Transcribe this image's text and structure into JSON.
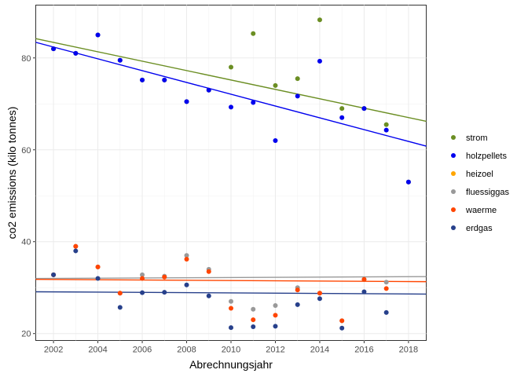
{
  "chart_data": {
    "type": "scatter",
    "xlabel": "Abrechnungsjahr",
    "ylabel": "co2 emissions (kilo tonnes)",
    "xlim": [
      2001.2,
      2018.8
    ],
    "ylim": [
      18.5,
      91.5
    ],
    "x_ticks": [
      2002,
      2004,
      2006,
      2008,
      2010,
      2012,
      2014,
      2016,
      2018
    ],
    "y_ticks": [
      20,
      40,
      60,
      80
    ],
    "grid": true,
    "legend_position": "right",
    "series": [
      {
        "name": "strom",
        "color": "#6b8e23",
        "points": [
          [
            2002,
            82
          ],
          [
            2003,
            81
          ],
          [
            2004,
            85
          ],
          [
            2005,
            79.5
          ],
          [
            2006,
            75.2
          ],
          [
            2007,
            75.2
          ],
          [
            2008,
            70.5
          ],
          [
            2009,
            73
          ],
          [
            2010,
            78
          ],
          [
            2011,
            85.3
          ],
          [
            2012,
            74
          ],
          [
            2013,
            75.5
          ],
          [
            2014,
            88.3
          ],
          [
            2015,
            69
          ],
          [
            2016,
            69
          ],
          [
            2017,
            65.5
          ],
          [
            2018,
            53
          ]
        ],
        "trend": [
          [
            2001.2,
            84.2
          ],
          [
            2018.8,
            66.2
          ]
        ]
      },
      {
        "name": "holzpellets",
        "color": "#0000ee",
        "points": [
          [
            2002,
            82
          ],
          [
            2003,
            81
          ],
          [
            2004,
            85
          ],
          [
            2005,
            79.5
          ],
          [
            2006,
            75.2
          ],
          [
            2007,
            75.2
          ],
          [
            2008,
            70.5
          ],
          [
            2009,
            73
          ],
          [
            2010,
            69.3
          ],
          [
            2011,
            70.3
          ],
          [
            2012,
            62
          ],
          [
            2013,
            71.7
          ],
          [
            2014,
            79.3
          ],
          [
            2015,
            67
          ],
          [
            2016,
            69
          ],
          [
            2017,
            64.3
          ],
          [
            2018,
            53
          ]
        ],
        "trend": [
          [
            2001.2,
            83.4
          ],
          [
            2018.8,
            60.8
          ]
        ]
      },
      {
        "name": "heizoel",
        "color": "#ffa500",
        "points": [],
        "trend": []
      },
      {
        "name": "fluessiggas",
        "color": "#999999",
        "points": [
          [
            2002,
            32.8
          ],
          [
            2003,
            39
          ],
          [
            2004,
            34.5
          ],
          [
            2005,
            28.8
          ],
          [
            2006,
            32.8
          ],
          [
            2007,
            32.5
          ],
          [
            2008,
            37
          ],
          [
            2009,
            34
          ],
          [
            2010,
            27
          ],
          [
            2011,
            25.3
          ],
          [
            2012,
            26.1
          ],
          [
            2013,
            30
          ],
          [
            2014,
            28.8
          ],
          [
            2015,
            22.8
          ],
          [
            2016,
            31.8
          ],
          [
            2017,
            31.2
          ]
        ],
        "trend": [
          [
            2001.2,
            32.0
          ],
          [
            2018.8,
            32.4
          ]
        ]
      },
      {
        "name": "waerme",
        "color": "#ff4500",
        "points": [
          [
            2002,
            32.8
          ],
          [
            2003,
            39
          ],
          [
            2004,
            34.5
          ],
          [
            2005,
            28.8
          ],
          [
            2006,
            32
          ],
          [
            2007,
            32.3
          ],
          [
            2008,
            36.2
          ],
          [
            2009,
            33.5
          ],
          [
            2010,
            25.5
          ],
          [
            2011,
            23
          ],
          [
            2012,
            24
          ],
          [
            2013,
            29.5
          ],
          [
            2014,
            28.8
          ],
          [
            2015,
            22.8
          ],
          [
            2016,
            31.8
          ],
          [
            2017,
            29.8
          ]
        ],
        "trend": [
          [
            2001.2,
            31.8
          ],
          [
            2018.8,
            31.3
          ]
        ]
      },
      {
        "name": "erdgas",
        "color": "#27408b",
        "points": [
          [
            2002,
            32.8
          ],
          [
            2003,
            38
          ],
          [
            2004,
            32
          ],
          [
            2005,
            25.7
          ],
          [
            2006,
            28.9
          ],
          [
            2007,
            29
          ],
          [
            2008,
            30.6
          ],
          [
            2009,
            28.2
          ],
          [
            2010,
            21.3
          ],
          [
            2011,
            21.5
          ],
          [
            2012,
            21.6
          ],
          [
            2013,
            26.3
          ],
          [
            2014,
            27.6
          ],
          [
            2015,
            21.2
          ],
          [
            2016,
            29.1
          ],
          [
            2017,
            24.6
          ]
        ],
        "trend": [
          [
            2001.2,
            29.1
          ],
          [
            2018.8,
            28.6
          ]
        ]
      }
    ]
  }
}
